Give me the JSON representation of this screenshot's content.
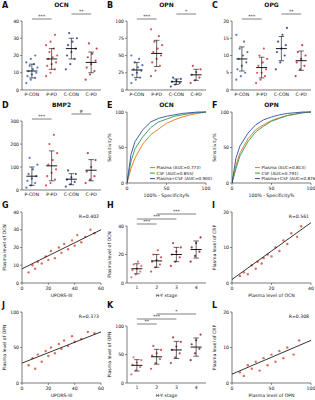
{
  "chart_data": [
    {
      "type": "dot",
      "panel_label": "A",
      "title": "OCN",
      "categories": [
        "P-CON",
        "P-PD",
        "C-CON",
        "C-PD"
      ],
      "colors": [
        "#3a63b0",
        "#d13a3a",
        "#2a3f8f",
        "#b8282e"
      ],
      "values": [
        [
          4,
          6,
          7,
          8,
          9,
          10,
          11,
          12,
          13,
          14,
          15,
          16,
          18,
          20
        ],
        [
          8,
          10,
          12,
          14,
          15,
          16,
          18,
          19,
          20,
          22,
          24,
          26,
          28,
          32
        ],
        [
          12,
          15,
          18,
          20,
          22,
          24,
          26,
          28,
          30,
          33
        ],
        [
          6,
          9,
          11,
          13,
          15,
          17,
          19,
          21,
          24,
          27
        ]
      ],
      "means": [
        11,
        18,
        24,
        16
      ],
      "errors": [
        4,
        6,
        6,
        6
      ],
      "ylim": [
        0,
        40
      ],
      "yticks": [
        0,
        10,
        20,
        30,
        40
      ],
      "annotations": [
        {
          "label": "***",
          "from": 0,
          "to": 1
        },
        {
          "label": "**",
          "from": 2,
          "to": 3
        }
      ]
    },
    {
      "type": "dot",
      "panel_label": "B",
      "title": "OPN",
      "categories": [
        "P-CON",
        "P-PD",
        "C-CON",
        "C-PD"
      ],
      "colors": [
        "#3a63b0",
        "#d13a3a",
        "#2a3f8f",
        "#b8282e"
      ],
      "values": [
        [
          10,
          15,
          18,
          22,
          25,
          28,
          30,
          33,
          36,
          40,
          45,
          50
        ],
        [
          20,
          28,
          35,
          40,
          45,
          50,
          55,
          60,
          65,
          70,
          78,
          88
        ],
        [
          5,
          8,
          10,
          12,
          14,
          16,
          18
        ],
        [
          10,
          14,
          18,
          22,
          26,
          30,
          35
        ]
      ],
      "means": [
        29,
        53,
        12,
        22
      ],
      "errors": [
        11,
        19,
        4,
        8
      ],
      "ylim": [
        0,
        100
      ],
      "yticks": [
        0,
        25,
        50,
        75,
        100
      ],
      "annotations": [
        {
          "label": "***",
          "from": 0,
          "to": 1
        },
        {
          "label": "*",
          "from": 2,
          "to": 3
        }
      ]
    },
    {
      "type": "dot",
      "panel_label": "C",
      "title": "OPG",
      "categories": [
        "P-CON",
        "P-PD",
        "C-CON",
        "C-PD"
      ],
      "colors": [
        "#3a63b0",
        "#d13a3a",
        "#2a3f8f",
        "#b8282e"
      ],
      "values": [
        [
          3,
          4,
          5,
          6,
          7,
          8,
          9,
          10,
          11,
          12,
          14,
          16
        ],
        [
          2,
          3,
          4,
          5,
          5,
          6,
          7,
          8,
          9,
          10,
          12
        ],
        [
          6,
          8,
          10,
          11,
          12,
          13,
          14,
          16,
          18
        ],
        [
          4,
          6,
          7,
          8,
          9,
          10,
          11,
          13
        ]
      ],
      "means": [
        9,
        6.5,
        12,
        8.5
      ],
      "errors": [
        3.5,
        3,
        3.5,
        2.8
      ],
      "ylim": [
        0,
        20
      ],
      "yticks": [
        0,
        5,
        10,
        15,
        20
      ],
      "annotations": [
        {
          "label": "***",
          "from": 0,
          "to": 1
        },
        {
          "label": "**",
          "from": 2,
          "to": 3
        }
      ]
    },
    {
      "type": "dot",
      "panel_label": "D",
      "title": "BMP2",
      "categories": [
        "P-CON",
        "P-PD",
        "C-CON",
        "C-PD"
      ],
      "colors": [
        "#3a63b0",
        "#d13a3a",
        "#2a3f8f",
        "#b8282e"
      ],
      "values": [
        [
          10,
          20,
          30,
          40,
          50,
          60,
          70,
          90,
          110,
          140
        ],
        [
          20,
          30,
          45,
          60,
          75,
          90,
          110,
          130,
          160,
          200,
          240
        ],
        [
          15,
          25,
          35,
          45,
          55,
          70,
          85
        ],
        [
          30,
          45,
          60,
          80,
          100,
          130,
          160
        ]
      ],
      "means": [
        60,
        105,
        47,
        86
      ],
      "errors": [
        40,
        65,
        24,
        46
      ],
      "ylim": [
        0,
        300
      ],
      "yticks": [
        0,
        100,
        200,
        300
      ],
      "annotations": [
        {
          "label": "***",
          "from": 0,
          "to": 1
        },
        {
          "label": "#",
          "from": 2,
          "to": 3
        }
      ]
    },
    {
      "type": "line",
      "panel_label": "E",
      "title": "OCN",
      "x_label": "100% - Specificity%",
      "y_label": "Sensitivity%",
      "xlim": [
        0,
        100
      ],
      "ylim": [
        0,
        100
      ],
      "xticks": [
        0,
        50,
        100
      ],
      "yticks": [
        0,
        50,
        100
      ],
      "legend": "lower right",
      "x": [
        0,
        5,
        10,
        20,
        30,
        40,
        50,
        60,
        70,
        80,
        90,
        100
      ],
      "series": [
        {
          "name": "Plasma (AUC=0.773)",
          "color": "#e8731c",
          "values": [
            0,
            20,
            35,
            55,
            68,
            76,
            84,
            89,
            93,
            96,
            98,
            100
          ]
        },
        {
          "name": "CSF (AUC=0.855)",
          "color": "#2e9a4a",
          "values": [
            0,
            30,
            48,
            65,
            78,
            86,
            90,
            94,
            96,
            98,
            99,
            100
          ]
        },
        {
          "name": "Plasma+CSF (AUC=0.900)",
          "color": "#2b4fa3",
          "values": [
            0,
            40,
            58,
            75,
            86,
            91,
            94,
            96,
            98,
            99,
            100,
            100
          ]
        }
      ]
    },
    {
      "type": "line",
      "panel_label": "F",
      "title": "OPN",
      "x_label": "100% - Specificity%",
      "y_label": "Sensitivity%",
      "xlim": [
        0,
        100
      ],
      "ylim": [
        0,
        100
      ],
      "xticks": [
        0,
        50,
        100
      ],
      "yticks": [
        0,
        50,
        100
      ],
      "legend": "lower right",
      "x": [
        0,
        5,
        10,
        20,
        30,
        40,
        50,
        60,
        70,
        80,
        90,
        100
      ],
      "series": [
        {
          "name": "Plasma (AUC=0.813)",
          "color": "#e8731c",
          "values": [
            0,
            25,
            42,
            62,
            75,
            82,
            88,
            92,
            95,
            97,
            99,
            100
          ]
        },
        {
          "name": "CSF (AUC=0.791)",
          "color": "#2e9a4a",
          "values": [
            0,
            20,
            38,
            58,
            72,
            80,
            87,
            91,
            95,
            97,
            99,
            100
          ]
        },
        {
          "name": "Plasma+CSF (AUC=0.876)",
          "color": "#2b4fa3",
          "values": [
            0,
            35,
            52,
            70,
            82,
            89,
            93,
            96,
            98,
            99,
            100,
            100
          ]
        }
      ]
    },
    {
      "type": "scatter",
      "panel_label": "G",
      "x_label": "UPDRS-III",
      "y_label": "Plasma level of OCN",
      "annotation": "R=0.402",
      "color": "#d24b3a",
      "xlim": [
        0,
        60
      ],
      "xticks": [
        0,
        20,
        40,
        60
      ],
      "ylim": [
        0,
        40
      ],
      "yticks": [
        0,
        10,
        20,
        30,
        40
      ],
      "x": [
        5,
        8,
        10,
        12,
        15,
        18,
        20,
        22,
        25,
        28,
        30,
        32,
        35,
        38,
        40,
        42,
        45,
        48,
        52,
        55
      ],
      "values": [
        6,
        10,
        8,
        12,
        11,
        15,
        13,
        18,
        14,
        20,
        17,
        22,
        19,
        24,
        21,
        27,
        23,
        26,
        30,
        28
      ],
      "trend_line": {
        "x": [
          0,
          60
        ],
        "y": [
          8,
          30
        ]
      }
    },
    {
      "type": "dot",
      "panel_label": "H",
      "x_label": "H-Y stage",
      "y_label": "Plasma level of OCN",
      "categories": [
        "1",
        "2",
        "3",
        "4"
      ],
      "colors": [
        "#e06060",
        "#d13a3a",
        "#b8282e",
        "#8a1a22"
      ],
      "values": [
        [
          4,
          6,
          8,
          9,
          10,
          12,
          13,
          15
        ],
        [
          8,
          11,
          13,
          15,
          16,
          18,
          20,
          23
        ],
        [
          12,
          15,
          18,
          20,
          22,
          25,
          28
        ],
        [
          15,
          19,
          22,
          25,
          28,
          32
        ]
      ],
      "means": [
        10,
        15.5,
        20,
        23.5
      ],
      "errors": [
        3.5,
        4.5,
        5,
        6
      ],
      "ylim": [
        0,
        40
      ],
      "yticks": [
        0,
        20,
        40
      ],
      "annotations": [
        {
          "label": "***",
          "from": 0,
          "to": 1
        },
        {
          "label": "***",
          "from": 0,
          "to": 2
        },
        {
          "label": "***",
          "from": 1,
          "to": 3
        }
      ]
    },
    {
      "type": "scatter",
      "panel_label": "I",
      "x_label": "Plasma level of OCN",
      "y_label": "Plasma level of CRP",
      "annotation": "R=0.561",
      "color": "#d24b3a",
      "xlim": [
        0,
        40
      ],
      "xticks": [
        0,
        20,
        40
      ],
      "ylim": [
        0,
        20
      ],
      "yticks": [
        0,
        10,
        20
      ],
      "x": [
        4,
        6,
        8,
        10,
        12,
        13,
        15,
        16,
        18,
        20,
        22,
        24,
        26,
        28,
        30,
        33,
        35
      ],
      "values": [
        2,
        3,
        2.5,
        5,
        4,
        6,
        5.5,
        7,
        8,
        7.5,
        10,
        9,
        12,
        11,
        14,
        13,
        16
      ],
      "trend_line": {
        "x": [
          0,
          40
        ],
        "y": [
          1,
          17
        ]
      }
    },
    {
      "type": "scatter",
      "panel_label": "J",
      "x_label": "UPDRS-III",
      "y_label": "Plasma level of OPN",
      "annotation": "R=0.373",
      "color": "#d24b3a",
      "xlim": [
        0,
        60
      ],
      "xticks": [
        0,
        20,
        40,
        60
      ],
      "ylim": [
        0,
        100
      ],
      "yticks": [
        0,
        50,
        100
      ],
      "x": [
        5,
        8,
        10,
        12,
        15,
        18,
        20,
        22,
        25,
        28,
        30,
        32,
        35,
        38,
        40,
        45,
        50,
        55
      ],
      "values": [
        25,
        35,
        20,
        40,
        30,
        45,
        38,
        50,
        42,
        55,
        48,
        60,
        52,
        66,
        58,
        62,
        72,
        70
      ],
      "trend_line": {
        "x": [
          0,
          60
        ],
        "y": [
          28,
          72
        ]
      }
    },
    {
      "type": "dot",
      "panel_label": "K",
      "x_label": "H-Y stage",
      "y_label": "Plasma level of OPN",
      "categories": [
        "1",
        "2",
        "3",
        "4"
      ],
      "colors": [
        "#e06060",
        "#d13a3a",
        "#b8282e",
        "#8a1a22"
      ],
      "values": [
        [
          15,
          22,
          28,
          32,
          36,
          40,
          45
        ],
        [
          25,
          35,
          42,
          48,
          52,
          58,
          65
        ],
        [
          35,
          45,
          52,
          58,
          64,
          72,
          80
        ],
        [
          40,
          52,
          60,
          68,
          75,
          85
        ]
      ],
      "means": [
        31,
        46,
        58,
        63
      ],
      "errors": [
        10,
        13,
        15,
        16
      ],
      "ylim": [
        0,
        100
      ],
      "yticks": [
        0,
        50,
        100
      ],
      "annotations": [
        {
          "label": "**",
          "from": 0,
          "to": 1
        },
        {
          "label": "***",
          "from": 0,
          "to": 2
        },
        {
          "label": "*",
          "from": 1,
          "to": 3
        }
      ]
    },
    {
      "type": "scatter",
      "panel_label": "L",
      "x_label": "Plasma level of OPN",
      "y_label": "Plasma level of CRP",
      "annotation": "R=0.308",
      "color": "#d24b3a",
      "xlim": [
        0,
        100
      ],
      "xticks": [
        0,
        50,
        100
      ],
      "ylim": [
        0,
        20
      ],
      "yticks": [
        0,
        10,
        20
      ],
      "x": [
        10,
        15,
        20,
        25,
        30,
        35,
        40,
        45,
        50,
        55,
        60,
        65,
        70,
        78,
        85
      ],
      "values": [
        3,
        2,
        5,
        4,
        6,
        3.5,
        7,
        5,
        8,
        6,
        9,
        7,
        10,
        8,
        12
      ],
      "trend_line": {
        "x": [
          0,
          100
        ],
        "y": [
          2.5,
          12
        ]
      }
    }
  ]
}
